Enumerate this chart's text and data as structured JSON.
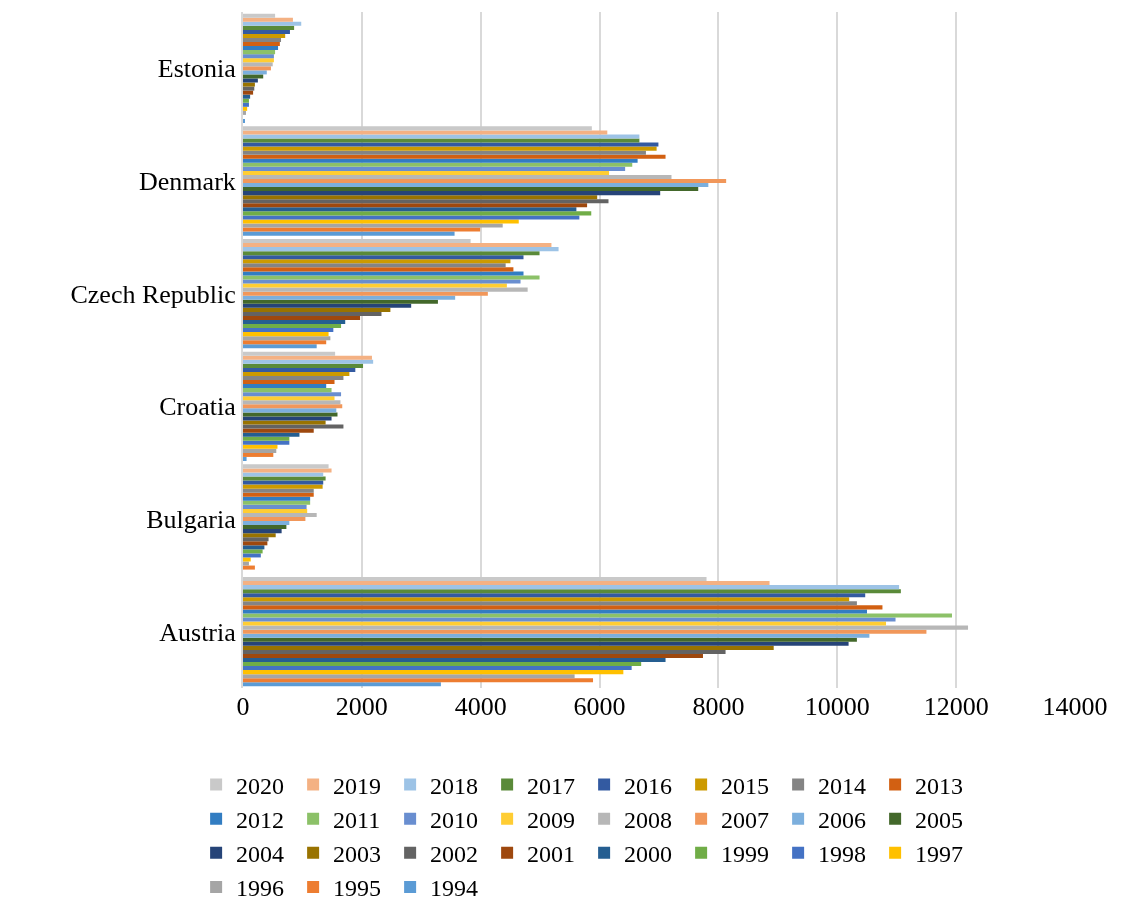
{
  "chart_data": {
    "type": "bar",
    "orientation": "horizontal",
    "categories": [
      "Estonia",
      "Denmark",
      "Czech Republic",
      "Croatia",
      "Bulgaria",
      "Austria"
    ],
    "series": [
      {
        "name": "1994",
        "color": "#5b9bd5",
        "values": [
          30,
          3560,
          1240,
          60,
          null,
          3330
        ]
      },
      {
        "name": "1995",
        "color": "#ed7d31",
        "values": [
          null,
          3990,
          1400,
          510,
          200,
          5890
        ]
      },
      {
        "name": "1996",
        "color": "#a5a5a5",
        "values": [
          50,
          4370,
          1470,
          560,
          100,
          5580
        ]
      },
      {
        "name": "1997",
        "color": "#ffc000",
        "values": [
          70,
          4640,
          1440,
          580,
          130,
          6400
        ]
      },
      {
        "name": "1998",
        "color": "#4472c4",
        "values": [
          100,
          5660,
          1520,
          780,
          300,
          6540
        ]
      },
      {
        "name": "1999",
        "color": "#70ad47",
        "values": [
          100,
          5860,
          1650,
          780,
          330,
          6700
        ]
      },
      {
        "name": "2000",
        "color": "#255e91",
        "values": [
          120,
          5610,
          1720,
          950,
          360,
          7110
        ]
      },
      {
        "name": "2001",
        "color": "#9e480e",
        "values": [
          170,
          5790,
          1970,
          1190,
          410,
          7740
        ]
      },
      {
        "name": "2002",
        "color": "#636363",
        "values": [
          190,
          6150,
          2330,
          1690,
          430,
          8120
        ]
      },
      {
        "name": "2003",
        "color": "#997300",
        "values": [
          200,
          5960,
          2480,
          1390,
          550,
          8930
        ]
      },
      {
        "name": "2004",
        "color": "#264478",
        "values": [
          250,
          7020,
          2830,
          1490,
          650,
          10190
        ]
      },
      {
        "name": "2005",
        "color": "#43682b",
        "values": [
          340,
          7660,
          3280,
          1590,
          730,
          10330
        ]
      },
      {
        "name": "2006",
        "color": "#7cafdd",
        "values": [
          400,
          7830,
          3570,
          1570,
          780,
          10540
        ]
      },
      {
        "name": "2007",
        "color": "#f1975a",
        "values": [
          470,
          8130,
          4120,
          1670,
          1050,
          11500
        ]
      },
      {
        "name": "2008",
        "color": "#b7b7b7",
        "values": [
          500,
          7210,
          4790,
          1640,
          1240,
          12200
        ]
      },
      {
        "name": "2009",
        "color": "#ffcd33",
        "values": [
          520,
          6160,
          4440,
          1540,
          1080,
          10820
        ]
      },
      {
        "name": "2010",
        "color": "#698ed0",
        "values": [
          520,
          6430,
          4670,
          1650,
          1070,
          10980
        ]
      },
      {
        "name": "2011",
        "color": "#8cc168",
        "values": [
          540,
          6550,
          4990,
          1490,
          1130,
          11930
        ]
      },
      {
        "name": "2012",
        "color": "#327dc2",
        "values": [
          590,
          6640,
          4720,
          1400,
          1130,
          10500
        ]
      },
      {
        "name": "2013",
        "color": "#d26012",
        "values": [
          620,
          7110,
          4550,
          1540,
          1190,
          10760
        ]
      },
      {
        "name": "2014",
        "color": "#848484",
        "values": [
          640,
          6780,
          4420,
          1690,
          1190,
          10330
        ]
      },
      {
        "name": "2015",
        "color": "#cc9a00",
        "values": [
          710,
          6960,
          4500,
          1790,
          1340,
          10200
        ]
      },
      {
        "name": "2016",
        "color": "#335aa1",
        "values": [
          790,
          6990,
          4720,
          1890,
          1350,
          10470
        ]
      },
      {
        "name": "2017",
        "color": "#5a8a39",
        "values": [
          860,
          6670,
          4990,
          2020,
          1390,
          11070
        ]
      },
      {
        "name": "2018",
        "color": "#9dc3e6",
        "values": [
          980,
          6670,
          5310,
          2190,
          1350,
          11040
        ]
      },
      {
        "name": "2019",
        "color": "#f4b183",
        "values": [
          840,
          6130,
          5190,
          2170,
          1490,
          8860
        ]
      },
      {
        "name": "2020",
        "color": "#c9c9c9",
        "values": [
          540,
          5870,
          3830,
          1550,
          1440,
          7800
        ]
      }
    ],
    "xlim": [
      0,
      14000
    ],
    "xticks": [
      0,
      2000,
      4000,
      6000,
      8000,
      10000,
      12000,
      14000
    ],
    "grid": "x",
    "legend": "bottom"
  }
}
